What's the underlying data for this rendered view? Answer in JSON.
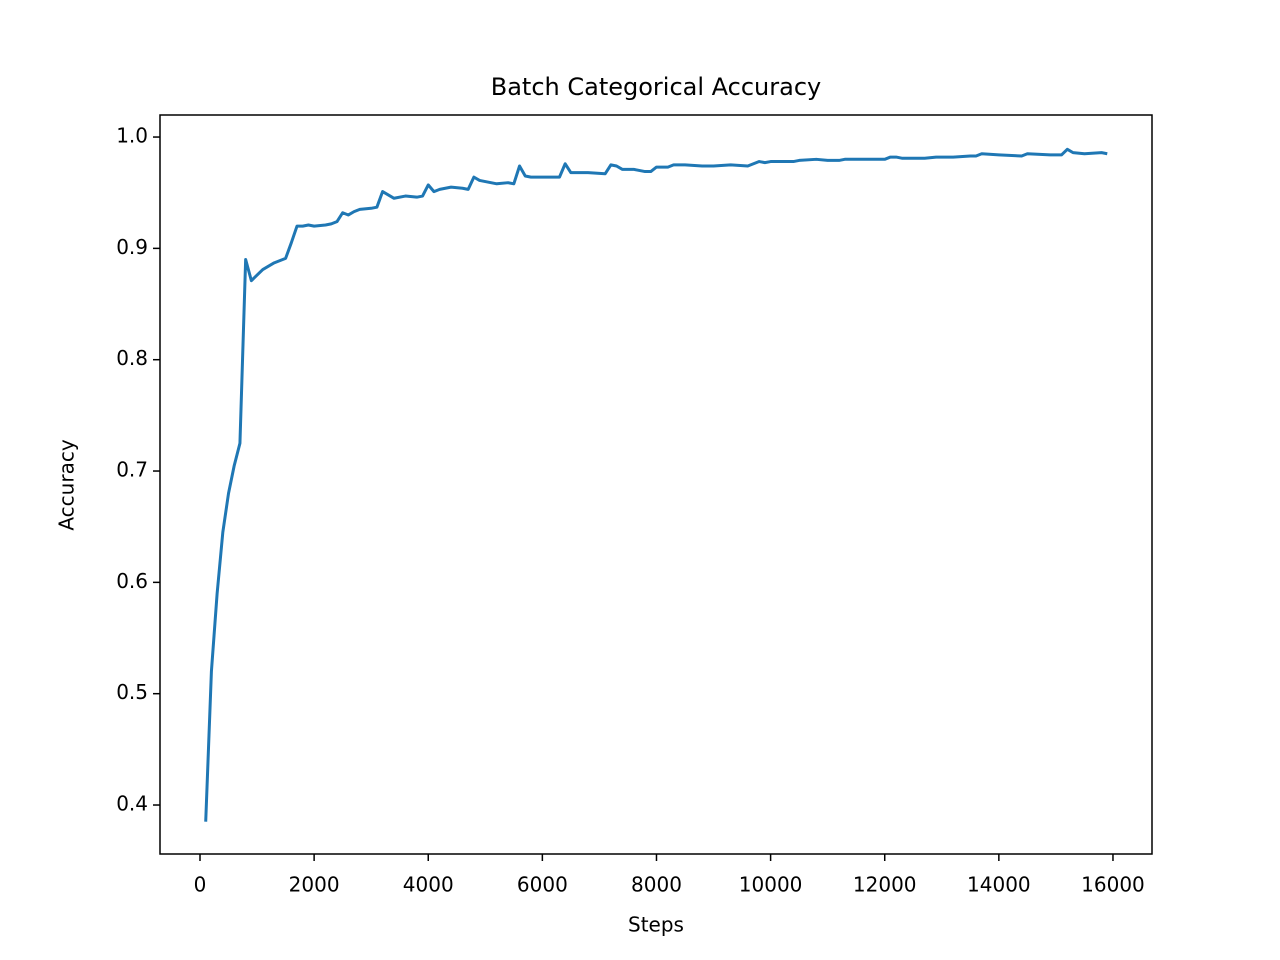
{
  "chart_data": {
    "type": "line",
    "title": "Batch Categorical Accuracy",
    "x_label": "Steps",
    "y_label": "Accuracy",
    "x": [
      100,
      200,
      300,
      400,
      500,
      600,
      700,
      800,
      900,
      1000,
      1100,
      1200,
      1300,
      1400,
      1500,
      1600,
      1700,
      1800,
      1900,
      2000,
      2200,
      2300,
      2400,
      2500,
      2600,
      2700,
      2800,
      3000,
      3100,
      3200,
      3300,
      3400,
      3600,
      3800,
      3900,
      4000,
      4100,
      4200,
      4400,
      4600,
      4700,
      4800,
      4900,
      5000,
      5200,
      5400,
      5500,
      5600,
      5700,
      5800,
      6000,
      6200,
      6300,
      6400,
      6500,
      6800,
      7100,
      7200,
      7300,
      7400,
      7600,
      7800,
      7900,
      8000,
      8200,
      8300,
      8500,
      8800,
      9000,
      9300,
      9600,
      9800,
      9900,
      10000,
      10400,
      10500,
      10800,
      11000,
      11200,
      11300,
      11600,
      12000,
      12100,
      12200,
      12300,
      12700,
      12900,
      13200,
      13500,
      13600,
      13700,
      14000,
      14400,
      14500,
      14900,
      15100,
      15200,
      15300,
      15500,
      15800,
      15900
    ],
    "series": [
      {
        "name": "Accuracy",
        "color": "#1f77b4",
        "values": [
          0.385,
          0.52,
          0.59,
          0.645,
          0.68,
          0.705,
          0.725,
          0.89,
          0.871,
          0.876,
          0.881,
          0.884,
          0.887,
          0.889,
          0.891,
          0.905,
          0.92,
          0.92,
          0.921,
          0.92,
          0.921,
          0.922,
          0.924,
          0.932,
          0.93,
          0.933,
          0.935,
          0.936,
          0.937,
          0.951,
          0.948,
          0.945,
          0.947,
          0.946,
          0.947,
          0.957,
          0.951,
          0.953,
          0.955,
          0.954,
          0.953,
          0.964,
          0.961,
          0.96,
          0.958,
          0.959,
          0.958,
          0.974,
          0.965,
          0.964,
          0.964,
          0.964,
          0.964,
          0.976,
          0.968,
          0.968,
          0.967,
          0.975,
          0.974,
          0.971,
          0.971,
          0.969,
          0.969,
          0.973,
          0.973,
          0.975,
          0.975,
          0.974,
          0.974,
          0.975,
          0.974,
          0.978,
          0.977,
          0.978,
          0.978,
          0.979,
          0.98,
          0.979,
          0.979,
          0.98,
          0.98,
          0.98,
          0.982,
          0.982,
          0.981,
          0.981,
          0.982,
          0.982,
          0.983,
          0.983,
          0.985,
          0.984,
          0.983,
          0.985,
          0.984,
          0.984,
          0.989,
          0.986,
          0.985,
          0.986,
          0.985
        ]
      }
    ],
    "xlim": [
      -701,
      16684
    ],
    "ylim": [
      0.356,
      1.0198
    ],
    "xticks": [
      0,
      2000,
      4000,
      6000,
      8000,
      10000,
      12000,
      14000,
      16000
    ],
    "yticks": [
      0.4,
      0.5,
      0.6,
      0.7,
      0.8,
      0.9,
      {
        "value": 1,
        "label": "1.0"
      }
    ]
  }
}
